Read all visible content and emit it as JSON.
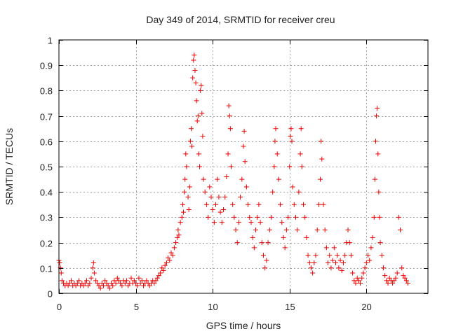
{
  "chart_data": {
    "type": "scatter",
    "title": "Day 349 of 2014, SRMTID for receiver creu",
    "xlabel": "GPS time / hours",
    "ylabel": "SRMTID / TECUs",
    "xlim": [
      0,
      24
    ],
    "ylim": [
      0,
      1
    ],
    "xticks": [
      0,
      5,
      10,
      15,
      20
    ],
    "yticks": [
      0,
      0.1,
      0.2,
      0.3,
      0.4,
      0.5,
      0.6,
      0.7,
      0.8,
      0.9,
      1
    ],
    "xtick_labels": [
      "0",
      "5",
      "10",
      "15",
      "20"
    ],
    "ytick_labels": [
      "0",
      "0.1",
      "0.2",
      "0.3",
      "0.4",
      "0.5",
      "0.6",
      "0.7",
      "0.8",
      "0.9",
      "1"
    ],
    "grid": true,
    "marker": "+",
    "series": [
      {
        "name": "SRMTID",
        "color": "#ee0000",
        "points": [
          [
            0.0,
            0.13
          ],
          [
            0.05,
            0.12
          ],
          [
            0.1,
            0.1
          ],
          [
            0.15,
            0.08
          ],
          [
            0.2,
            0.05
          ],
          [
            0.3,
            0.04
          ],
          [
            0.4,
            0.03
          ],
          [
            0.5,
            0.04
          ],
          [
            0.6,
            0.03
          ],
          [
            0.7,
            0.04
          ],
          [
            0.8,
            0.05
          ],
          [
            0.9,
            0.03
          ],
          [
            1.0,
            0.04
          ],
          [
            1.1,
            0.03
          ],
          [
            1.2,
            0.04
          ],
          [
            1.3,
            0.05
          ],
          [
            1.4,
            0.03
          ],
          [
            1.5,
            0.04
          ],
          [
            1.6,
            0.03
          ],
          [
            1.7,
            0.04
          ],
          [
            1.8,
            0.05
          ],
          [
            1.9,
            0.03
          ],
          [
            2.0,
            0.04
          ],
          [
            2.1,
            0.06
          ],
          [
            2.2,
            0.1
          ],
          [
            2.25,
            0.12
          ],
          [
            2.3,
            0.08
          ],
          [
            2.4,
            0.05
          ],
          [
            2.5,
            0.04
          ],
          [
            2.6,
            0.03
          ],
          [
            2.7,
            0.02
          ],
          [
            2.8,
            0.04
          ],
          [
            2.9,
            0.03
          ],
          [
            3.0,
            0.05
          ],
          [
            3.1,
            0.04
          ],
          [
            3.2,
            0.03
          ],
          [
            3.3,
            0.02
          ],
          [
            3.4,
            0.04
          ],
          [
            3.5,
            0.03
          ],
          [
            3.6,
            0.05
          ],
          [
            3.7,
            0.04
          ],
          [
            3.8,
            0.06
          ],
          [
            3.9,
            0.05
          ],
          [
            4.0,
            0.04
          ],
          [
            4.1,
            0.03
          ],
          [
            4.2,
            0.05
          ],
          [
            4.3,
            0.04
          ],
          [
            4.4,
            0.05
          ],
          [
            4.5,
            0.03
          ],
          [
            4.6,
            0.04
          ],
          [
            4.7,
            0.06
          ],
          [
            4.8,
            0.04
          ],
          [
            4.9,
            0.05
          ],
          [
            5.0,
            0.04
          ],
          [
            5.1,
            0.03
          ],
          [
            5.2,
            0.06
          ],
          [
            5.3,
            0.04
          ],
          [
            5.4,
            0.05
          ],
          [
            5.5,
            0.03
          ],
          [
            5.6,
            0.04
          ],
          [
            5.7,
            0.05
          ],
          [
            5.8,
            0.04
          ],
          [
            5.9,
            0.03
          ],
          [
            6.0,
            0.04
          ],
          [
            6.1,
            0.05
          ],
          [
            6.2,
            0.04
          ],
          [
            6.3,
            0.05
          ],
          [
            6.4,
            0.06
          ],
          [
            6.5,
            0.07
          ],
          [
            6.6,
            0.08
          ],
          [
            6.7,
            0.1
          ],
          [
            6.8,
            0.09
          ],
          [
            6.9,
            0.11
          ],
          [
            7.0,
            0.12
          ],
          [
            7.1,
            0.14
          ],
          [
            7.2,
            0.13
          ],
          [
            7.3,
            0.16
          ],
          [
            7.4,
            0.15
          ],
          [
            7.5,
            0.18
          ],
          [
            7.6,
            0.2
          ],
          [
            7.7,
            0.22
          ],
          [
            7.75,
            0.25
          ],
          [
            7.8,
            0.23
          ],
          [
            7.9,
            0.28
          ],
          [
            8.0,
            0.3
          ],
          [
            8.05,
            0.35
          ],
          [
            8.1,
            0.32
          ],
          [
            8.15,
            0.4
          ],
          [
            8.2,
            0.45
          ],
          [
            8.25,
            0.55
          ],
          [
            8.3,
            0.5
          ],
          [
            8.4,
            0.38
          ],
          [
            8.45,
            0.33
          ],
          [
            8.5,
            0.42
          ],
          [
            8.55,
            0.6
          ],
          [
            8.6,
            0.65
          ],
          [
            8.65,
            0.58
          ],
          [
            8.7,
            0.85
          ],
          [
            8.75,
            0.92
          ],
          [
            8.8,
            0.94
          ],
          [
            8.85,
            0.88
          ],
          [
            8.9,
            0.83
          ],
          [
            8.95,
            0.76
          ],
          [
            9.0,
            0.68
          ],
          [
            9.05,
            0.7
          ],
          [
            9.1,
            0.55
          ],
          [
            9.15,
            0.5
          ],
          [
            9.2,
            0.8
          ],
          [
            9.25,
            0.82
          ],
          [
            9.3,
            0.71
          ],
          [
            9.35,
            0.62
          ],
          [
            9.4,
            0.45
          ],
          [
            9.5,
            0.4
          ],
          [
            9.6,
            0.35
          ],
          [
            9.7,
            0.3
          ],
          [
            9.8,
            0.42
          ],
          [
            9.9,
            0.38
          ],
          [
            10.0,
            0.33
          ],
          [
            10.1,
            0.28
          ],
          [
            10.2,
            0.35
          ],
          [
            10.3,
            0.45
          ],
          [
            10.4,
            0.38
          ],
          [
            10.5,
            0.32
          ],
          [
            10.6,
            0.28
          ],
          [
            10.7,
            0.33
          ],
          [
            10.8,
            0.38
          ],
          [
            10.9,
            0.46
          ],
          [
            11.0,
            0.55
          ],
          [
            11.05,
            0.74
          ],
          [
            11.1,
            0.7
          ],
          [
            11.15,
            0.65
          ],
          [
            11.2,
            0.5
          ],
          [
            11.3,
            0.35
          ],
          [
            11.4,
            0.3
          ],
          [
            11.5,
            0.25
          ],
          [
            11.6,
            0.2
          ],
          [
            11.7,
            0.28
          ],
          [
            11.8,
            0.38
          ],
          [
            11.9,
            0.45
          ],
          [
            12.0,
            0.58
          ],
          [
            12.05,
            0.64
          ],
          [
            12.1,
            0.52
          ],
          [
            12.2,
            0.42
          ],
          [
            12.3,
            0.35
          ],
          [
            12.4,
            0.3
          ],
          [
            12.5,
            0.28
          ],
          [
            12.6,
            0.22
          ],
          [
            12.7,
            0.18
          ],
          [
            12.8,
            0.25
          ],
          [
            12.9,
            0.3
          ],
          [
            13.0,
            0.35
          ],
          [
            13.1,
            0.28
          ],
          [
            13.2,
            0.2
          ],
          [
            13.3,
            0.15
          ],
          [
            13.4,
            0.1
          ],
          [
            13.5,
            0.13
          ],
          [
            13.6,
            0.2
          ],
          [
            13.7,
            0.25
          ],
          [
            13.8,
            0.3
          ],
          [
            13.9,
            0.4
          ],
          [
            14.0,
            0.5
          ],
          [
            14.05,
            0.6
          ],
          [
            14.1,
            0.65
          ],
          [
            14.2,
            0.55
          ],
          [
            14.3,
            0.45
          ],
          [
            14.4,
            0.35
          ],
          [
            14.5,
            0.28
          ],
          [
            14.6,
            0.22
          ],
          [
            14.7,
            0.18
          ],
          [
            14.8,
            0.25
          ],
          [
            14.9,
            0.3
          ],
          [
            15.0,
            0.5
          ],
          [
            15.05,
            0.62
          ],
          [
            15.1,
            0.65
          ],
          [
            15.15,
            0.6
          ],
          [
            15.2,
            0.42
          ],
          [
            15.3,
            0.35
          ],
          [
            15.4,
            0.3
          ],
          [
            15.5,
            0.25
          ],
          [
            15.6,
            0.4
          ],
          [
            15.7,
            0.55
          ],
          [
            15.75,
            0.65
          ],
          [
            15.8,
            0.5
          ],
          [
            15.9,
            0.35
          ],
          [
            16.0,
            0.3
          ],
          [
            16.1,
            0.22
          ],
          [
            16.2,
            0.15
          ],
          [
            16.3,
            0.12
          ],
          [
            16.4,
            0.1
          ],
          [
            16.5,
            0.08
          ],
          [
            16.6,
            0.12
          ],
          [
            16.7,
            0.15
          ],
          [
            16.8,
            0.25
          ],
          [
            16.9,
            0.35
          ],
          [
            17.0,
            0.45
          ],
          [
            17.05,
            0.6
          ],
          [
            17.1,
            0.53
          ],
          [
            17.2,
            0.35
          ],
          [
            17.3,
            0.25
          ],
          [
            17.4,
            0.18
          ],
          [
            17.5,
            0.12
          ],
          [
            17.6,
            0.15
          ],
          [
            17.7,
            0.1
          ],
          [
            17.8,
            0.13
          ],
          [
            17.9,
            0.18
          ],
          [
            18.0,
            0.12
          ],
          [
            18.1,
            0.15
          ],
          [
            18.2,
            0.1
          ],
          [
            18.3,
            0.13
          ],
          [
            18.4,
            0.09
          ],
          [
            18.5,
            0.12
          ],
          [
            18.6,
            0.15
          ],
          [
            18.7,
            0.2
          ],
          [
            18.8,
            0.25
          ],
          [
            18.9,
            0.2
          ],
          [
            19.0,
            0.15
          ],
          [
            19.1,
            0.08
          ],
          [
            19.2,
            0.05
          ],
          [
            19.3,
            0.04
          ],
          [
            19.4,
            0.06
          ],
          [
            19.5,
            0.05
          ],
          [
            19.6,
            0.04
          ],
          [
            19.7,
            0.06
          ],
          [
            19.8,
            0.08
          ],
          [
            19.9,
            0.1
          ],
          [
            20.0,
            0.12
          ],
          [
            20.1,
            0.15
          ],
          [
            20.2,
            0.13
          ],
          [
            20.3,
            0.18
          ],
          [
            20.4,
            0.22
          ],
          [
            20.5,
            0.3
          ],
          [
            20.55,
            0.45
          ],
          [
            20.6,
            0.6
          ],
          [
            20.65,
            0.7
          ],
          [
            20.7,
            0.73
          ],
          [
            20.75,
            0.55
          ],
          [
            20.8,
            0.4
          ],
          [
            20.85,
            0.3
          ],
          [
            20.9,
            0.2
          ],
          [
            21.0,
            0.15
          ],
          [
            21.1,
            0.1
          ],
          [
            21.2,
            0.07
          ],
          [
            21.3,
            0.05
          ],
          [
            21.4,
            0.04
          ],
          [
            21.5,
            0.06
          ],
          [
            21.6,
            0.05
          ],
          [
            21.7,
            0.04
          ],
          [
            21.8,
            0.05
          ],
          [
            21.9,
            0.06
          ],
          [
            22.0,
            0.08
          ],
          [
            22.1,
            0.3
          ],
          [
            22.2,
            0.25
          ],
          [
            22.3,
            0.1
          ],
          [
            22.4,
            0.07
          ],
          [
            22.5,
            0.06
          ],
          [
            22.6,
            0.05
          ],
          [
            22.7,
            0.04
          ]
        ]
      }
    ]
  }
}
